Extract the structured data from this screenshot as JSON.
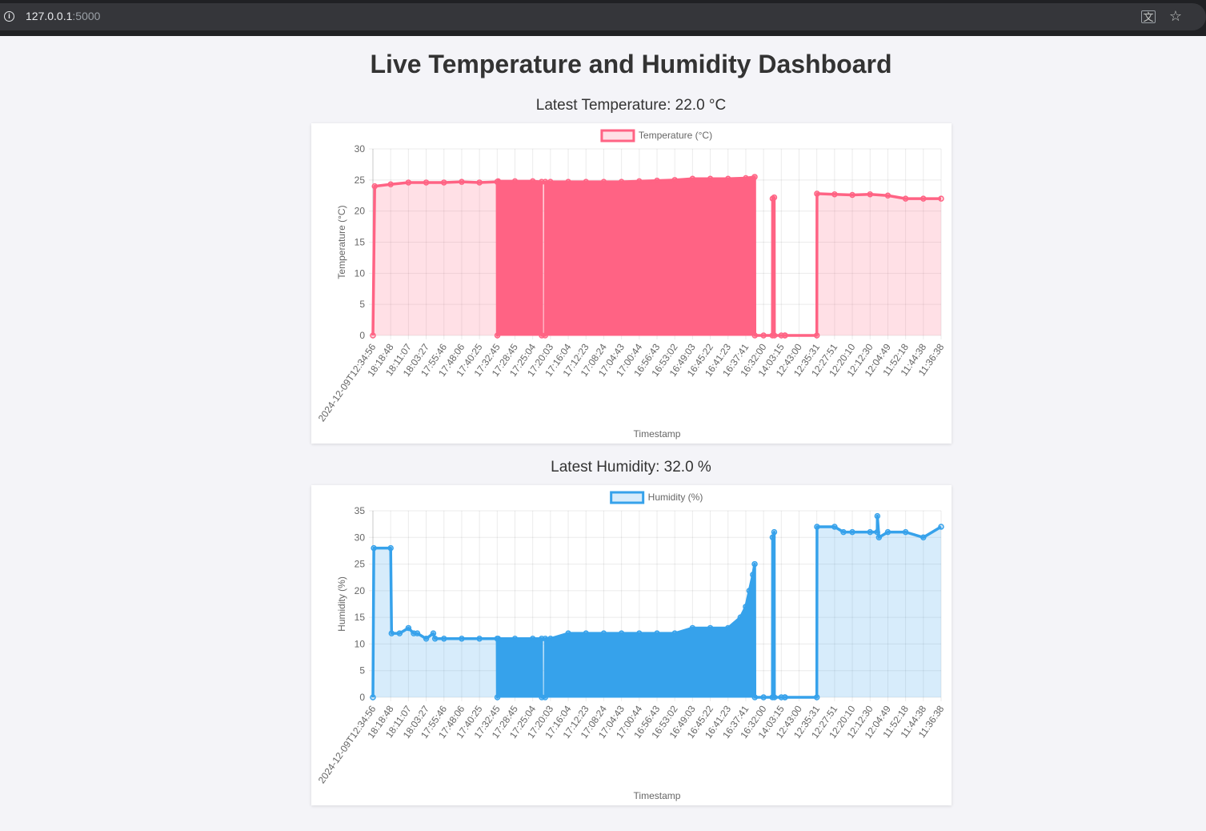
{
  "browser": {
    "url_host": "127.0.0.1",
    "url_port": ":5000"
  },
  "page": {
    "title": "Live Temperature and Humidity Dashboard",
    "latest_temperature": "Latest Temperature: 22.0 °C",
    "latest_humidity": "Latest Humidity: 32.0 %"
  },
  "colors": {
    "temperature": "#ff6384",
    "temperature_fill": "rgba(255,99,132,0.2)",
    "humidity": "#36a2eb",
    "humidity_fill": "rgba(54,162,235,0.2)"
  },
  "x_tick_labels": [
    "2024-12-09T12:34:56",
    "18:18:48",
    "18:11:07",
    "18:03:27",
    "17:55:46",
    "17:48:06",
    "17:40:25",
    "17:32:45",
    "17:28:45",
    "17:25:04",
    "17:20:03",
    "17:16:04",
    "17:12:23",
    "17:08:24",
    "17:04:43",
    "17:00:44",
    "16:56:43",
    "16:53:02",
    "16:49:03",
    "16:45:22",
    "16:41:23",
    "16:37:41",
    "16:32:00",
    "14:03:15",
    "12:43:00",
    "12:35:31",
    "12:27:51",
    "12:20:10",
    "12:12:30",
    "12:04:49",
    "11:52:18",
    "11:44:38",
    "11:36:38"
  ],
  "chart_data": [
    {
      "type": "area",
      "legend": "Temperature (°C)",
      "xlabel": "Timestamp",
      "ylabel": "Temperature (°C)",
      "ylim": [
        0,
        30
      ],
      "yticks": [
        0,
        5,
        10,
        15,
        20,
        25,
        30
      ],
      "grid": true,
      "legend_position": "top",
      "points_index": [
        0,
        0.1,
        1,
        2,
        3,
        4,
        5,
        6,
        7,
        7.01,
        7.05,
        8,
        9,
        9.5,
        9.51,
        9.7,
        9.71,
        10,
        11,
        12,
        13,
        14,
        15,
        16,
        17,
        18,
        19,
        20,
        21,
        21.5,
        21.51,
        22,
        22.5,
        22.51,
        22.6,
        22.61,
        23,
        23.2,
        23.21,
        25,
        25.01,
        26,
        27,
        28,
        29,
        30,
        31,
        32
      ],
      "points_value": [
        0,
        24,
        24.3,
        24.6,
        24.6,
        24.6,
        24.7,
        24.6,
        24.7,
        0,
        24.8,
        24.8,
        24.8,
        24.7,
        0,
        0,
        24.7,
        24.7,
        24.7,
        24.7,
        24.7,
        24.7,
        24.8,
        24.9,
        25.0,
        25.2,
        25.2,
        25.2,
        25.3,
        25.5,
        0,
        0,
        0,
        22,
        22.2,
        0,
        0,
        0,
        0,
        0,
        22.8,
        22.7,
        22.6,
        22.7,
        22.5,
        22.0,
        22.0,
        22.0
      ],
      "dense_from_index": 7.05,
      "dense_to_index": 21.5
    },
    {
      "type": "area",
      "legend": "Humidity (%)",
      "xlabel": "Timestamp",
      "ylabel": "Humidity (%)",
      "ylim": [
        0,
        35
      ],
      "yticks": [
        0,
        5,
        10,
        15,
        20,
        25,
        30,
        35
      ],
      "grid": true,
      "legend_position": "top",
      "points_index": [
        0,
        0.05,
        1,
        1.05,
        1.5,
        2,
        2.3,
        2.5,
        3,
        3.4,
        3.5,
        4,
        5,
        6,
        7,
        7.01,
        7.05,
        8,
        9,
        9.5,
        9.51,
        9.7,
        9.71,
        10,
        11,
        12,
        13,
        14,
        15,
        16,
        17,
        18,
        19,
        20,
        20.7,
        21,
        21.2,
        21.4,
        21.5,
        21.51,
        22,
        22.5,
        22.51,
        22.6,
        22.61,
        23,
        23.2,
        23.21,
        25,
        25.01,
        26,
        26.5,
        27,
        28,
        28.4,
        28.41,
        28.5,
        29,
        30,
        31,
        32
      ],
      "points_value": [
        0,
        28,
        28,
        12,
        12,
        13,
        12,
        12,
        11,
        12,
        11,
        11,
        11,
        11,
        11,
        0,
        11,
        11,
        11,
        11,
        0,
        0,
        11,
        11,
        12,
        12,
        12,
        12,
        12,
        12,
        12,
        13,
        13,
        13,
        15,
        17,
        20,
        23,
        25,
        0,
        0,
        0,
        30,
        31,
        0,
        0,
        0,
        0,
        0,
        32,
        32,
        31,
        31,
        31,
        31,
        34,
        30,
        31,
        31,
        30,
        32
      ],
      "dense_from_index": 7.05,
      "dense_to_index": 21.5
    }
  ]
}
